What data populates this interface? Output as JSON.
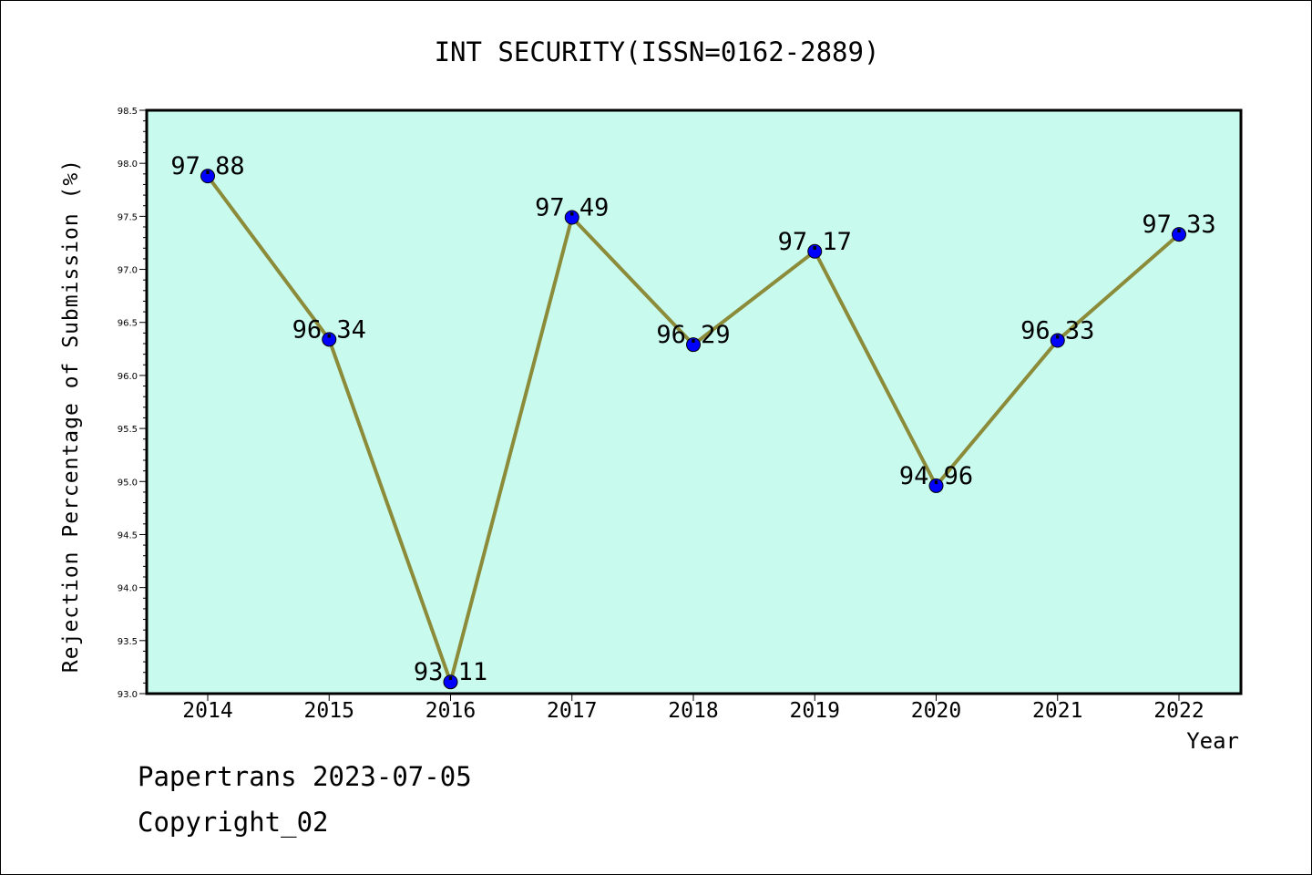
{
  "chart_data": {
    "type": "line",
    "title": "INT SECURITY(ISSN=0162-2889)",
    "xlabel": "Year",
    "ylabel": "Rejection Percentage of Submission (%)",
    "categories": [
      "2014",
      "2015",
      "2016",
      "2017",
      "2018",
      "2019",
      "2020",
      "2021",
      "2022"
    ],
    "values": [
      97.88,
      96.34,
      93.11,
      97.49,
      96.29,
      97.17,
      94.96,
      96.33,
      97.33
    ],
    "data_labels": [
      "97.88",
      "96.34",
      "93.11",
      "97.49",
      "96.29",
      "97.17",
      "94.96",
      "96.33",
      "97.33"
    ],
    "ylim": [
      93.0,
      98.5
    ],
    "yticks": [
      "93.0",
      "93.5",
      "94.0",
      "94.5",
      "95.0",
      "95.5",
      "96.0",
      "96.5",
      "97.0",
      "97.5",
      "98.0",
      "98.5"
    ],
    "grid": false,
    "legend": "none",
    "colors": {
      "plot_background": "#c8fbee",
      "line": "#8b8b3a",
      "marker": "#0000ff"
    }
  },
  "footer": {
    "line1": "Papertrans 2023-07-05",
    "line2": "Copyright_02"
  }
}
